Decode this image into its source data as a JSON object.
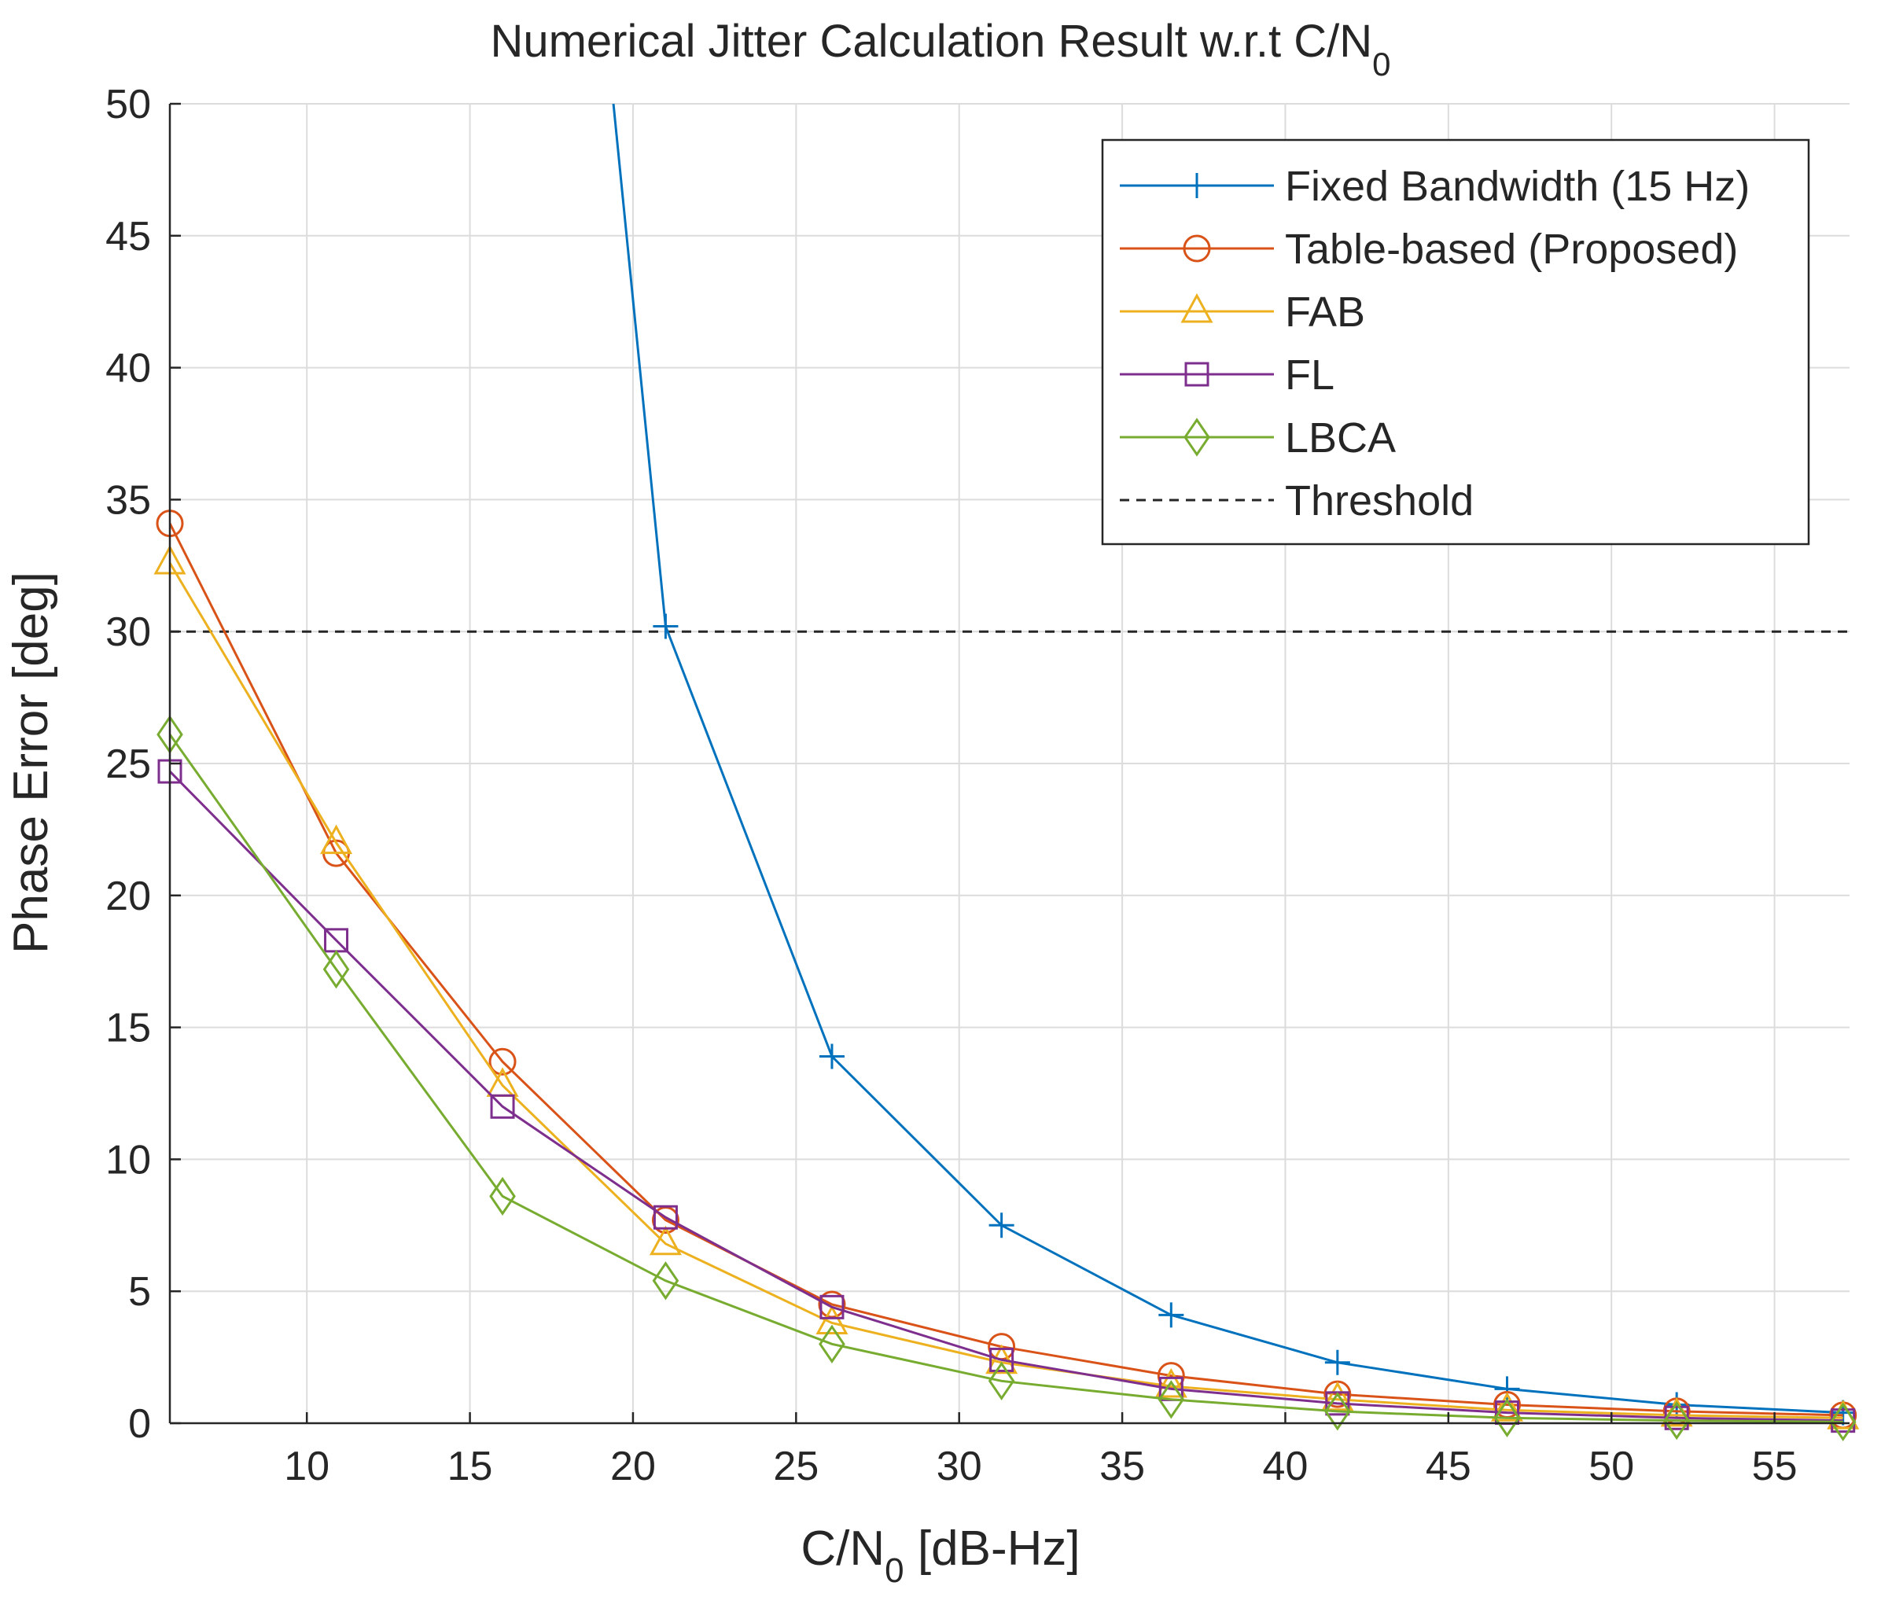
{
  "chart_data": {
    "type": "line",
    "title": "Numerical Jitter Calculation Result w.r.t C/N",
    "title_subscript": "0",
    "xlabel": "C/N",
    "xlabel_subscript": "0",
    "xlabel_suffix": " [dB-Hz]",
    "ylabel": "Phase Error [deg]",
    "xlim": [
      5.8,
      57.3
    ],
    "ylim": [
      0,
      50
    ],
    "xticks": [
      10,
      15,
      20,
      25,
      30,
      35,
      40,
      45,
      50,
      55
    ],
    "yticks": [
      0,
      5,
      10,
      15,
      20,
      25,
      30,
      35,
      40,
      45,
      50
    ],
    "grid": true,
    "legend_position": "top-right",
    "threshold": {
      "name": "Threshold",
      "value": 30,
      "color": "#262626"
    },
    "series": [
      {
        "name": "Fixed Bandwidth (15 Hz)",
        "color": "#0072BD",
        "marker": "plus",
        "x": [
          19.4,
          21.0,
          26.1,
          31.3,
          36.5,
          41.6,
          46.8,
          52.0,
          57.1
        ],
        "y": [
          50,
          30.2,
          13.9,
          7.5,
          4.1,
          2.3,
          1.3,
          0.7,
          0.4
        ],
        "marker_x": [
          21.0,
          26.1,
          31.3,
          36.5,
          41.6,
          46.8,
          52.0,
          57.1
        ]
      },
      {
        "name": "Table-based (Proposed)",
        "color": "#D95319",
        "marker": "circle",
        "x": [
          5.8,
          10.9,
          16.0,
          21.0,
          26.1,
          31.3,
          36.5,
          41.6,
          46.8,
          52.0,
          57.1
        ],
        "y": [
          34.1,
          21.6,
          13.7,
          7.7,
          4.5,
          2.9,
          1.8,
          1.1,
          0.7,
          0.45,
          0.3
        ]
      },
      {
        "name": "FAB",
        "color": "#EDB120",
        "marker": "triangle",
        "x": [
          5.8,
          10.9,
          16.0,
          21.0,
          26.1,
          31.3,
          36.5,
          41.6,
          46.8,
          52.0,
          57.1
        ],
        "y": [
          32.6,
          22.0,
          12.8,
          6.8,
          3.8,
          2.3,
          1.4,
          0.9,
          0.5,
          0.3,
          0.2
        ]
      },
      {
        "name": "FL",
        "color": "#7E2F8E",
        "marker": "square",
        "x": [
          5.8,
          10.9,
          16.0,
          21.0,
          26.1,
          31.3,
          36.5,
          41.6,
          46.8,
          52.0,
          57.1
        ],
        "y": [
          24.7,
          18.3,
          12.0,
          7.8,
          4.4,
          2.4,
          1.3,
          0.75,
          0.4,
          0.2,
          0.1
        ]
      },
      {
        "name": "LBCA",
        "color": "#77AC30",
        "marker": "diamond",
        "x": [
          5.8,
          10.9,
          16.0,
          21.0,
          26.1,
          31.3,
          36.5,
          41.6,
          46.8,
          52.0,
          57.1
        ],
        "y": [
          26.1,
          17.2,
          8.6,
          5.4,
          3.0,
          1.6,
          0.9,
          0.45,
          0.2,
          0.1,
          0.05
        ]
      }
    ]
  }
}
